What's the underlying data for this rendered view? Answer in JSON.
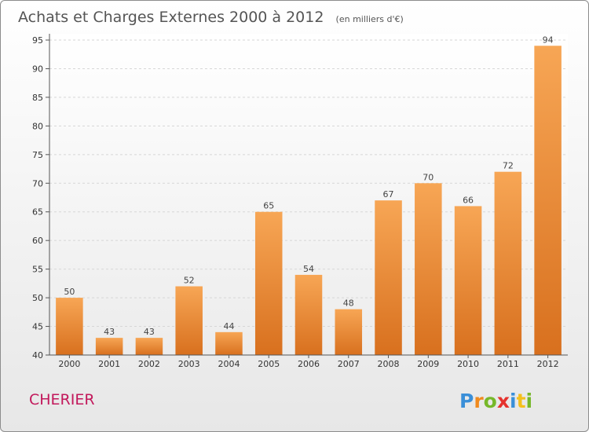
{
  "chart_data": {
    "type": "bar",
    "title": "Achats et Charges Externes 2000 à 2012",
    "subtitle": "(en milliers d'€)",
    "categories": [
      "2000",
      "2001",
      "2002",
      "2003",
      "2004",
      "2005",
      "2006",
      "2007",
      "2008",
      "2009",
      "2010",
      "2011",
      "2012"
    ],
    "values": [
      50,
      43,
      43,
      52,
      44,
      65,
      54,
      48,
      67,
      70,
      66,
      72,
      94
    ],
    "ylim": [
      40,
      95
    ],
    "yticks": [
      40,
      45,
      50,
      55,
      60,
      65,
      70,
      75,
      80,
      85,
      90,
      95
    ],
    "grid": true,
    "bar_color_light": "#f7a655",
    "bar_color_dark": "#d8701e"
  },
  "commune_name": "CHERIER",
  "logo": {
    "letters": [
      "P",
      "r",
      "o",
      "x",
      "i",
      "t",
      "i"
    ],
    "colors": [
      "#3a8fd8",
      "#f08a1e",
      "#76b82a",
      "#e5322d",
      "#3a8fd8",
      "#f4c01c",
      "#76b82a"
    ]
  }
}
